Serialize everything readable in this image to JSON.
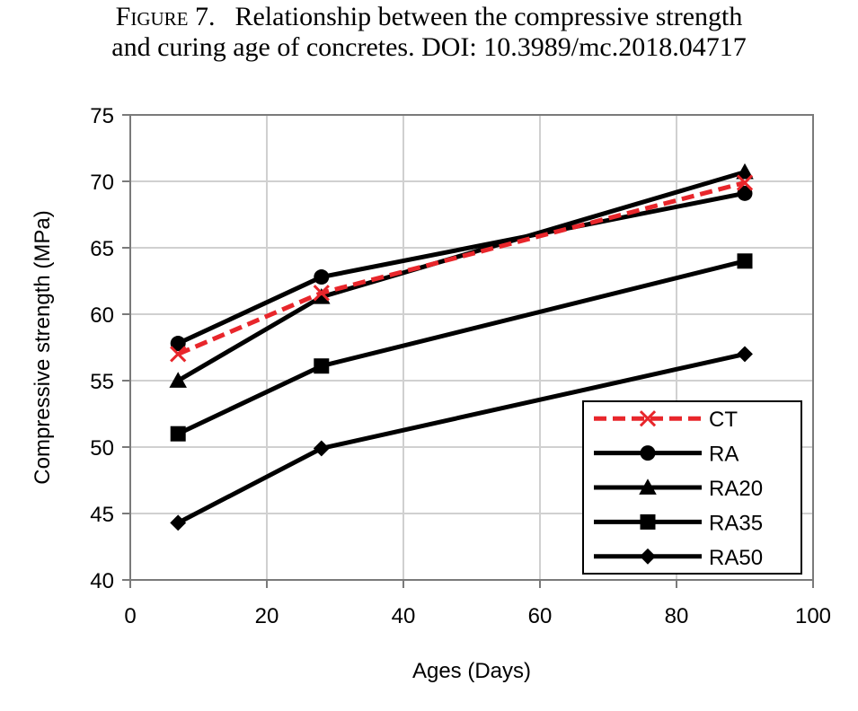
{
  "caption": {
    "label": "Figure 7.",
    "line1": "Relationship between the compressive strength",
    "line2": "and curing age of concretes. DOI: 10.3989/mc.2018.04717"
  },
  "chart_data": {
    "type": "line",
    "xlabel": "Ages (Days)",
    "ylabel": "Compressive strength (MPa)",
    "xlim": [
      0,
      100
    ],
    "ylim": [
      40,
      75
    ],
    "xticks": [
      0,
      20,
      40,
      60,
      80,
      100
    ],
    "yticks": [
      40,
      45,
      50,
      55,
      60,
      65,
      70,
      75
    ],
    "grid": true,
    "legend_position": "bottom-right",
    "series": [
      {
        "name": "CT",
        "marker": "x",
        "color": "#e8262b",
        "dashed": true,
        "x": [
          7,
          28,
          90
        ],
        "y": [
          57.0,
          61.6,
          69.9
        ]
      },
      {
        "name": "RA",
        "marker": "circle",
        "color": "#000000",
        "dashed": false,
        "x": [
          7,
          28,
          90
        ],
        "y": [
          57.8,
          62.8,
          69.1
        ]
      },
      {
        "name": "RA20",
        "marker": "triangle",
        "color": "#000000",
        "dashed": false,
        "x": [
          7,
          28,
          90
        ],
        "y": [
          55.0,
          61.3,
          70.7
        ]
      },
      {
        "name": "RA35",
        "marker": "square",
        "color": "#000000",
        "dashed": false,
        "x": [
          7,
          28,
          90
        ],
        "y": [
          51.0,
          56.1,
          64.0
        ]
      },
      {
        "name": "RA50",
        "marker": "diamond",
        "color": "#000000",
        "dashed": false,
        "x": [
          7,
          28,
          90
        ],
        "y": [
          44.3,
          49.9,
          57.0
        ]
      }
    ]
  }
}
